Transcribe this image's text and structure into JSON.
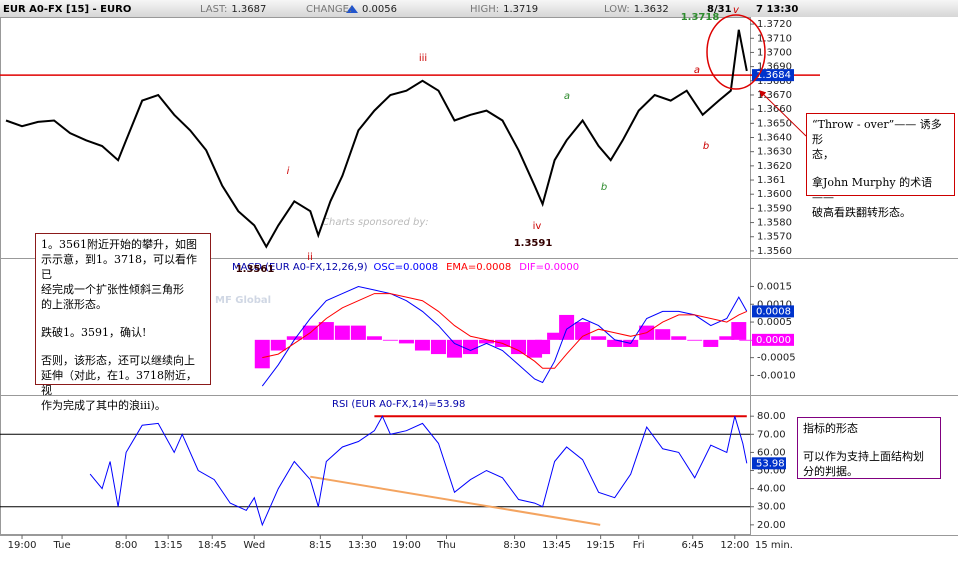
{
  "header": {
    "symbol": "EUR A0-FX [15] - EURO",
    "last_label": "LAST:",
    "last": 1.3687,
    "change_label": "CHANGE:",
    "change": 0.0056,
    "high_label": "HIGH:",
    "high": 1.3719,
    "low_label": "LOW:",
    "low": 1.3632,
    "date": "8/31",
    "time": "7 13:30"
  },
  "watermark": {
    "sponsor": "Charts sponsored by:",
    "brand": "MF Global"
  },
  "chart_data": [
    {
      "type": "line",
      "color": "#000000",
      "x": [
        -2,
        0,
        2,
        4,
        6,
        8,
        10,
        12,
        13,
        15,
        17,
        19,
        21,
        23,
        25,
        27,
        29,
        30.5,
        32,
        34,
        36,
        37,
        38.5,
        40,
        42,
        44,
        46,
        48,
        50,
        52,
        54,
        56,
        58,
        60,
        62,
        64,
        65,
        66.5,
        68,
        70,
        72,
        73.5,
        75,
        77,
        79,
        81,
        83,
        85,
        87,
        88.5,
        89.5,
        90.5
      ],
      "values": [
        1.3652,
        1.3648,
        1.3651,
        1.3652,
        1.3643,
        1.3638,
        1.3634,
        1.3624,
        1.3638,
        1.3666,
        1.367,
        1.3656,
        1.3645,
        1.3631,
        1.3606,
        1.3588,
        1.3578,
        1.3563,
        1.3578,
        1.3595,
        1.3588,
        1.3571,
        1.3595,
        1.3613,
        1.3645,
        1.3659,
        1.367,
        1.3673,
        1.368,
        1.3673,
        1.3652,
        1.3656,
        1.3659,
        1.3652,
        1.3631,
        1.3606,
        1.3593,
        1.3624,
        1.3638,
        1.3652,
        1.3634,
        1.3624,
        1.3638,
        1.3659,
        1.367,
        1.3666,
        1.3673,
        1.3656,
        1.3666,
        1.3673,
        1.3716,
        1.3687
      ],
      "xlim": [
        -2.75,
        90.9
      ],
      "xticks": [
        {
          "value": 0,
          "label": "19:00"
        },
        {
          "value": 5,
          "label": "Tue"
        },
        {
          "value": 13,
          "label": "8:00"
        },
        {
          "value": 18.25,
          "label": "13:15"
        },
        {
          "value": 23.75,
          "label": "18:45"
        },
        {
          "value": 29,
          "label": "Wed"
        },
        {
          "value": 37.25,
          "label": "8:15"
        },
        {
          "value": 42.5,
          "label": "13:30"
        },
        {
          "value": 48,
          "label": "19:00"
        },
        {
          "value": 53,
          "label": "Thu"
        },
        {
          "value": 61.5,
          "label": "8:30"
        },
        {
          "value": 66.75,
          "label": "13:45"
        },
        {
          "value": 72.25,
          "label": "19:15"
        },
        {
          "value": 77,
          "label": "Fri"
        },
        {
          "value": 83.75,
          "label": "6:45"
        },
        {
          "value": 89,
          "label": "12:00"
        }
      ],
      "x_label": "15 min.",
      "ylim": [
        1.3555,
        1.3725
      ],
      "yticks": [
        {
          "value": 1.356,
          "label": "1.3560"
        },
        {
          "value": 1.357,
          "label": "1.3570"
        },
        {
          "value": 1.358,
          "label": "1.3580"
        },
        {
          "value": 1.359,
          "label": "1.3590"
        },
        {
          "value": 1.36,
          "label": "1.3600"
        },
        1.361,
        {
          "value": 1.362,
          "label": "1.3620"
        },
        {
          "value": 1.363,
          "label": "1.3630"
        },
        {
          "value": 1.364,
          "label": "1.3640"
        },
        {
          "value": 1.365,
          "label": "1.3650"
        },
        {
          "value": 1.366,
          "label": "1.3660"
        },
        {
          "value": 1.367,
          "label": "1.3670"
        },
        {
          "value": 1.368,
          "label": "1.3680"
        },
        {
          "value": 1.369,
          "label": "1.3690"
        },
        {
          "value": 1.37,
          "label": "1.3700"
        },
        {
          "value": 1.371,
          "label": "1.3710"
        },
        {
          "value": 1.372,
          "label": "1.3720"
        }
      ],
      "hline": 1.3684,
      "hline_color": "#e00000",
      "annotations": [
        {
          "text": "1.3718",
          "color": "#2e8b2e"
        },
        {
          "text": "v",
          "color": "#cc0000"
        },
        {
          "text": "iii",
          "color": "#cc0000"
        },
        {
          "text": "a",
          "color": "#cc0000"
        },
        {
          "text": "i",
          "color": "#cc0000"
        },
        {
          "text": "ii",
          "color": "#cc0000"
        },
        {
          "text": "iv",
          "color": "#cc0000"
        },
        {
          "text": "1.3591",
          "color": "#330000"
        },
        {
          "text": "1.3561",
          "color": "#330000"
        },
        {
          "text": "b",
          "color": "#cc0000"
        },
        {
          "text": "a",
          "color": "#2e8b2e"
        },
        {
          "text": "b",
          "color": "#2e8b2e"
        }
      ]
    },
    {
      "type": "line",
      "title": "MACD (EUR A0-FX,12,26,9)",
      "separator": " = ",
      "x": [
        30,
        32,
        34,
        36,
        38,
        40,
        42,
        44,
        46,
        48,
        50,
        52,
        54,
        56,
        58,
        60,
        62,
        64,
        65,
        66.5,
        68,
        70,
        72,
        74,
        76,
        78,
        80,
        82,
        84,
        86,
        88,
        89.5,
        90.5
      ],
      "ylim": [
        -0.00155,
        0.0023
      ],
      "yticks": [
        {
          "value": -0.001,
          "label": "-0.0010"
        },
        -0.0005,
        0.0005,
        {
          "value": 0.001,
          "label": "0.0010"
        },
        0.0015
      ],
      "series": [
        {
          "name": "OSC",
          "color": "#0000ff",
          "kind": "line",
          "current": 0.0008,
          "values": [
            -0.0013,
            -0.0007,
            0,
            0.0006,
            0.0011,
            0.0013,
            0.0015,
            0.0014,
            0.0013,
            0.0011,
            0.0008,
            0.0004,
            -0.0001,
            -0.0003,
            -0.0001,
            -0.0003,
            -0.0007,
            -0.0011,
            -0.0012,
            -0.0006,
            0.0003,
            0.0006,
            0.0004,
            0,
            -0.0001,
            0.0006,
            0.0008,
            0.0008,
            0.0007,
            0.0004,
            0.0006,
            0.0012,
            0.0008
          ]
        },
        {
          "name": "EMA",
          "color": "#ff0000",
          "kind": "line",
          "current": 0.0008,
          "values": [
            -0.0005,
            -0.0004,
            -0.0001,
            0.0002,
            0.0006,
            0.0009,
            0.0011,
            0.0013,
            0.0013,
            0.0012,
            0.0011,
            0.0008,
            0.0004,
            0.0001,
            0,
            -0.0001,
            -0.0003,
            -0.0006,
            -0.0008,
            -0.0008,
            -0.0004,
            0.0001,
            0.0003,
            0.0002,
            0.0001,
            0.0002,
            0.0005,
            0.0007,
            0.0007,
            0.0006,
            0.0005,
            0.0007,
            0.0008
          ]
        },
        {
          "name": "DIF",
          "color": "#ff00ff",
          "kind": "bar",
          "current": {
            "value": 0,
            "label": "0.0000"
          },
          "values": [
            -0.0008,
            -0.0003,
            0.0001,
            0.0004,
            0.0005,
            0.0004,
            0.0004,
            0.0001,
            0,
            -0.0001,
            -0.0003,
            -0.0004,
            -0.0005,
            -0.0004,
            -0.0001,
            -0.0002,
            -0.0004,
            -0.0005,
            -0.0004,
            0.0002,
            0.0007,
            0.0005,
            0.0001,
            -0.0002,
            -0.0002,
            0.0004,
            0.0003,
            0.0001,
            0,
            -0.0002,
            0.0001,
            0.0005,
            0
          ]
        }
      ]
    },
    {
      "type": "line",
      "title": "RSI (EUR A0-FX,14)",
      "separator": " = ",
      "color": "#0000ff",
      "x": [
        8.5,
        10,
        11,
        12,
        13,
        15,
        17,
        19,
        20,
        22,
        24,
        26,
        28,
        29,
        30,
        32,
        34,
        36,
        37,
        38,
        40,
        42,
        44,
        45,
        46,
        48,
        50,
        52,
        54,
        56,
        58,
        60,
        62,
        64,
        65,
        66.5,
        68,
        70,
        72,
        74,
        76,
        78,
        80,
        82,
        84,
        86,
        88,
        89,
        90,
        90.5
      ],
      "values": [
        48,
        40,
        55,
        30,
        60,
        75,
        76,
        60,
        70,
        50,
        45,
        32,
        28,
        35,
        20,
        40,
        55,
        45,
        30,
        55,
        63,
        66,
        72,
        80,
        70,
        72,
        76,
        65,
        38,
        45,
        50,
        46,
        34,
        32,
        30,
        55,
        63,
        56,
        38,
        35,
        48,
        74,
        62,
        60,
        46,
        64,
        60,
        80,
        65,
        53.98
      ],
      "ylim": [
        14.4,
        91.7
      ],
      "yticks": [
        {
          "value": 20,
          "label": "20.00"
        },
        {
          "value": 30,
          "label": "30.00"
        },
        {
          "value": 40,
          "label": "40.00"
        },
        {
          "value": 50,
          "label": "50.00"
        },
        {
          "value": 60,
          "label": "60.00"
        },
        {
          "value": 70,
          "label": "70.00"
        },
        {
          "value": 80,
          "label": "80.00"
        }
      ],
      "levels": [
        30,
        70
      ],
      "lines": [
        {
          "color": "#e00000",
          "x": [
            44,
            90.5
          ],
          "values": [
            80,
            80
          ]
        },
        {
          "color": "#f4a460",
          "x": [
            36,
            72.2
          ],
          "values": [
            46.6,
            20
          ]
        }
      ]
    }
  ],
  "notes": [
    {
      "paragraphs": [
        [
          "1。3561附近开始的攀升，如图",
          "示示意，到1。3718，可以看作已",
          "经完成一个扩张性倾斜三角形",
          "的上涨形态。"
        ],
        [
          "跌破1。3591，确认!"
        ],
        [
          "否则，该形态，还可以继续向上",
          "延伸（对此，在1。3718附近，视",
          "作为完成了其中的浪iii)。"
        ]
      ]
    },
    {
      "paragraphs": [
        [
          "“Throw - over”—— 诱多形",
          "态，"
        ],
        [
          "拿John Murphy 的术语 ——",
          "破高看跌翻转形态。"
        ]
      ]
    },
    {
      "paragraphs": [
        [
          "指标的形态"
        ],
        [
          "可以作为支持上面结构划",
          "分的判据。"
        ]
      ]
    }
  ]
}
